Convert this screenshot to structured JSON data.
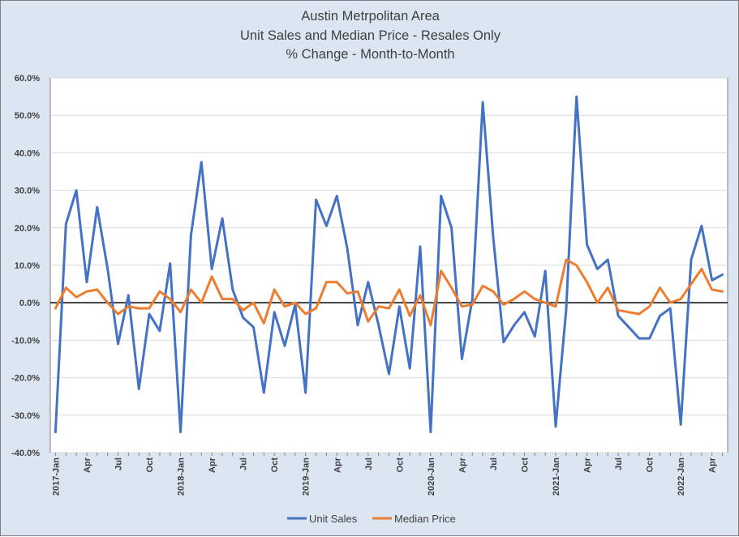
{
  "chart_data": {
    "type": "line",
    "title": [
      "Austin Metrpolitan Area",
      "Unit Sales and Median Price - Resales Only",
      "% Change - Month-to-Month"
    ],
    "xlabel": "",
    "ylabel": "",
    "ylim": [
      -40,
      60
    ],
    "yticks": [
      -40,
      -30,
      -20,
      -10,
      0,
      10,
      20,
      30,
      40,
      50,
      60
    ],
    "ytick_labels": [
      "-40.0%",
      "-30.0%",
      "-20.0%",
      "-10.0%",
      "0.0%",
      "10.0%",
      "20.0%",
      "30.0%",
      "40.0%",
      "50.0%",
      "60.0%"
    ],
    "grid": "horizontal",
    "legend_position": "bottom",
    "x": [
      "2017-Jan",
      "Feb",
      "Mar",
      "Apr",
      "May",
      "Jun",
      "Jul",
      "Aug",
      "Sep",
      "Oct",
      "Nov",
      "Dec",
      "2018-Jan",
      "Feb",
      "Mar",
      "Apr",
      "May",
      "Jun",
      "Jul",
      "Aug",
      "Sep",
      "Oct",
      "Nov",
      "Dec",
      "2019-Jan",
      "Feb",
      "Mar",
      "Apr",
      "May",
      "Jun",
      "Jul",
      "Aug",
      "Sep",
      "Oct",
      "Nov",
      "Dec",
      "2020-Jan",
      "Feb",
      "Mar",
      "Apr",
      "May",
      "Jun",
      "Jul",
      "Aug",
      "Sep",
      "Oct",
      "Nov",
      "Dec",
      "2021-Jan",
      "Feb",
      "Mar",
      "Apr",
      "May",
      "Jun",
      "Jul",
      "Aug",
      "Sep",
      "Oct",
      "Nov",
      "Dec",
      "2022-Jan",
      "Feb",
      "Mar",
      "Apr",
      "May"
    ],
    "x_tick_labels": [
      "2017-Jan",
      "Apr",
      "Jul",
      "Oct",
      "2018-Jan",
      "Apr",
      "Jul",
      "Oct",
      "2019-Jan",
      "Apr",
      "Jul",
      "Oct",
      "2020-Jan",
      "Apr",
      "Jul",
      "Oct",
      "2021-Jan",
      "Apr",
      "Jul",
      "Oct",
      "2022-Jan",
      "Apr"
    ],
    "series": [
      {
        "name": "Unit Sales",
        "color": "#4472c4",
        "values": [
          -34.5,
          21,
          30,
          5.5,
          25.5,
          9,
          -11,
          2,
          -23,
          -3,
          -7.5,
          10.5,
          -34.5,
          18,
          37.5,
          9,
          22.5,
          3.5,
          -4,
          -6.5,
          -24,
          -2.5,
          -11.5,
          -0.5,
          -24,
          27.5,
          20.5,
          28.5,
          14.5,
          -6,
          5.5,
          -6,
          -19,
          -1,
          -17.5,
          15,
          -34.5,
          28.5,
          20,
          -15,
          1,
          53.5,
          17.5,
          -10.5,
          -6,
          -2.5,
          -9,
          8.5,
          -33,
          -2,
          55,
          15.5,
          9,
          11.5,
          -3.5,
          -6.5,
          -9.5,
          -9.5,
          -3.5,
          -1.5,
          -32.5,
          11.5,
          20.5,
          6,
          7.5
        ]
      },
      {
        "name": "Median Price",
        "color": "#ed7d31",
        "values": [
          -1.5,
          4,
          1.5,
          3,
          3.5,
          0,
          -3,
          -1,
          -1.5,
          -1.5,
          3,
          1,
          -2.5,
          3.5,
          0,
          7,
          1,
          1,
          -2,
          0,
          -5.5,
          3.5,
          -1,
          0,
          -3,
          -1.5,
          5.5,
          5.5,
          2.5,
          3,
          -5,
          -1,
          -1.5,
          3.5,
          -3.5,
          2,
          -6,
          8.5,
          4,
          -1,
          -0.5,
          4.5,
          3,
          -0.5,
          1,
          3,
          1,
          0,
          -1,
          11.5,
          10,
          5.5,
          0,
          4,
          -2,
          -2.5,
          -3,
          -1,
          4,
          0,
          1,
          5,
          9,
          3.5,
          3
        ]
      }
    ]
  }
}
